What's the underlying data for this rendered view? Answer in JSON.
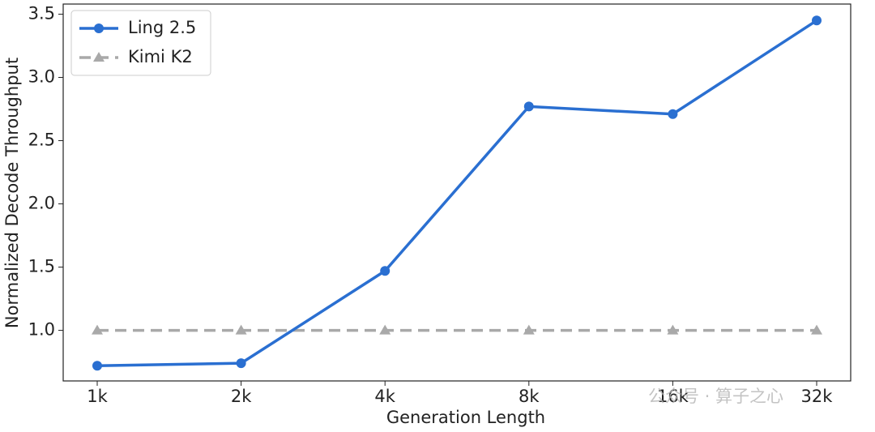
{
  "chart_data": {
    "type": "line",
    "xlabel": "Generation Length",
    "ylabel": "Normalized Decode Throughput",
    "categories": [
      "1k",
      "2k",
      "4k",
      "8k",
      "16k",
      "32k"
    ],
    "series": [
      {
        "name": "Ling 2.5",
        "color": "#2a6fd1",
        "marker": "circle",
        "dash": false,
        "values": [
          0.72,
          0.74,
          1.47,
          2.77,
          2.71,
          3.45
        ]
      },
      {
        "name": "Kimi K2",
        "color": "#a9a9a9",
        "marker": "triangle",
        "dash": true,
        "values": [
          1.0,
          1.0,
          1.0,
          1.0,
          1.0,
          1.0
        ]
      }
    ],
    "ylim": [
      0.6,
      3.58
    ],
    "yticks": [
      {
        "value": 1,
        "label": "1.0"
      },
      1.5,
      {
        "value": 2,
        "label": "2.0"
      },
      2.5,
      {
        "value": 3,
        "label": "3.0"
      },
      3.5
    ],
    "legend": "upper left",
    "watermark": "公众号 · 算子之心"
  }
}
